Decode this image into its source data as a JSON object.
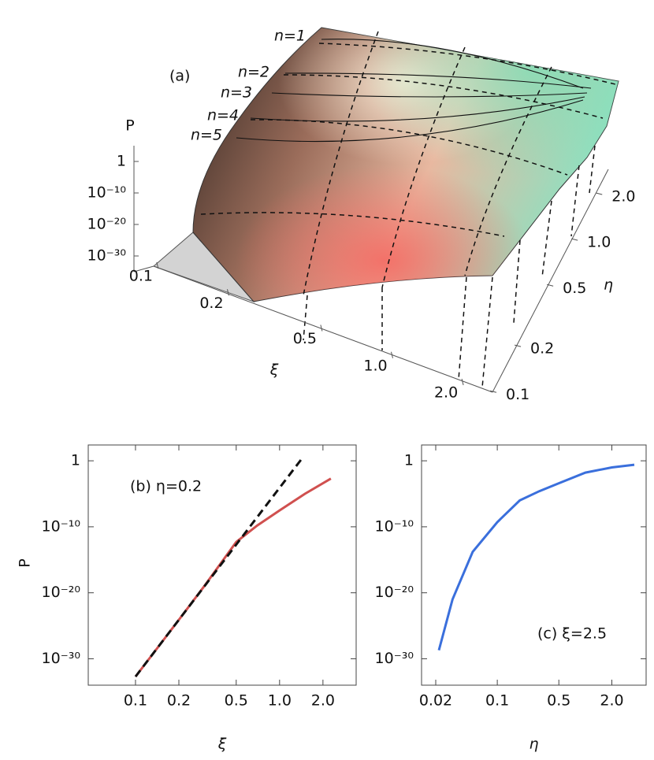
{
  "chart_data": [
    {
      "type": "surface3d",
      "title": "(a)",
      "zlabel": "P",
      "xlabel": "ξ",
      "ylabel": "η",
      "curve_labels": [
        "n=1",
        "n=2",
        "n=3",
        "n=4",
        "n=5"
      ],
      "zscale": "log",
      "xscale": "log",
      "yscale": "log",
      "zlim": [
        1e-35,
        100000
      ],
      "xlim": [
        0.08,
        2.6
      ],
      "ylim": [
        0.08,
        2.6
      ],
      "zticks": [
        1,
        {
          "value": 1e-10,
          "label": "10⁻¹⁰"
        },
        {
          "value": 1e-20,
          "label": "10⁻²⁰"
        },
        {
          "value": 1e-30,
          "label": "10⁻³⁰"
        }
      ],
      "xticks": [
        0.1,
        0.2,
        0.5,
        {
          "value": 1,
          "label": "1.0"
        },
        {
          "value": 2,
          "label": "2.0"
        }
      ],
      "yticks": [
        0.1,
        0.2,
        0.5,
        {
          "value": 1,
          "label": "1.0"
        },
        {
          "value": 2,
          "label": "2.0"
        }
      ]
    },
    {
      "type": "line",
      "title": "(b) η=0.2",
      "xlabel": "ξ",
      "ylabel": "P",
      "xscale": "log",
      "yscale": "log",
      "xlim": [
        0.047,
        3.4
      ],
      "ylim": [
        1e-34,
        250
      ],
      "xticks": [
        0.1,
        0.2,
        0.5,
        {
          "value": 1,
          "label": "1.0"
        },
        {
          "value": 2,
          "label": "2.0"
        }
      ],
      "yticks": [
        1,
        {
          "value": 1e-10,
          "label": "10⁻¹⁰"
        },
        {
          "value": 1e-20,
          "label": "10⁻²⁰"
        },
        {
          "value": 1e-30,
          "label": "10⁻³⁰"
        }
      ],
      "series": [
        {
          "color": "#d0504f",
          "dash": false,
          "x": [
            0.1,
            0.2,
            0.3,
            0.5,
            0.7,
            1.0,
            1.5,
            2.27
          ],
          "values": [
            2e-33,
            8e-25,
            1e-19,
            5e-13,
            1.6e-10,
            3e-08,
            1e-05,
            0.002
          ]
        },
        {
          "color": "#111111",
          "dash": true,
          "x": [
            0.1,
            0.2,
            0.5,
            1.0,
            1.46
          ],
          "values": [
            2e-33,
            8e-25,
            2e-13,
            8e-05,
            4
          ]
        }
      ]
    },
    {
      "type": "line",
      "title": "(c) ξ=2.5",
      "xlabel": "η",
      "xscale": "log",
      "yscale": "log",
      "xlim": [
        0.0138,
        4.9
      ],
      "ylim": [
        1e-34,
        250
      ],
      "xticks": [
        0.02,
        0.1,
        0.5,
        {
          "value": 2,
          "label": "2.0"
        }
      ],
      "yticks": [
        1,
        {
          "value": 1e-10,
          "label": "10⁻¹⁰"
        },
        {
          "value": 1e-20,
          "label": "10⁻²⁰"
        },
        {
          "value": 1e-30,
          "label": "10⁻³⁰"
        }
      ],
      "series": [
        {
          "color": "#3a6fdc",
          "dash": false,
          "x": [
            0.0217,
            0.031,
            0.0526,
            0.1,
            0.18,
            0.3,
            0.5,
            1.0,
            2.0,
            3.6
          ],
          "values": [
            2e-29,
            1e-21,
            1.6e-14,
            5e-10,
            1e-06,
            2.5e-05,
            0.0004,
            0.016,
            0.1,
            0.25
          ]
        }
      ]
    }
  ]
}
